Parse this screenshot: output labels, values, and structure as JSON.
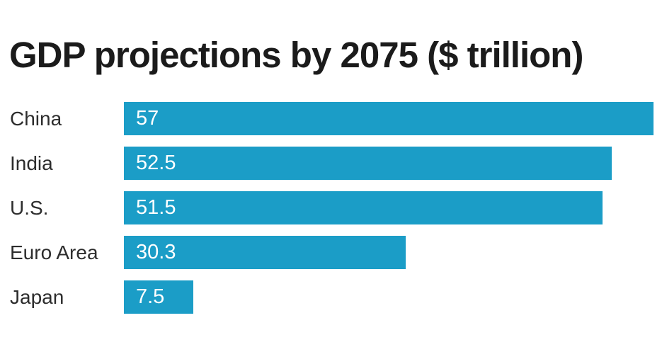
{
  "title": "GDP projections by 2075 ($ trillion)",
  "colors": {
    "bar": "#1b9dc7",
    "title_text": "#1b1b1b",
    "label_text": "#2d2d2d",
    "value_text": "#ffffff",
    "background": "#ffffff"
  },
  "chart_data": {
    "type": "bar",
    "orientation": "horizontal",
    "title": "GDP projections by 2075 ($ trillion)",
    "unit": "$ trillion",
    "categories": [
      "China",
      "India",
      "U.S.",
      "Euro Area",
      "Japan"
    ],
    "values": [
      57,
      52.5,
      51.5,
      30.3,
      7.5
    ],
    "value_labels": [
      "57",
      "52.5",
      "51.5",
      "30.3",
      "7.5"
    ],
    "xlim": [
      0,
      57
    ],
    "grid": false,
    "legend": false,
    "value_label_position": "inside-start"
  }
}
